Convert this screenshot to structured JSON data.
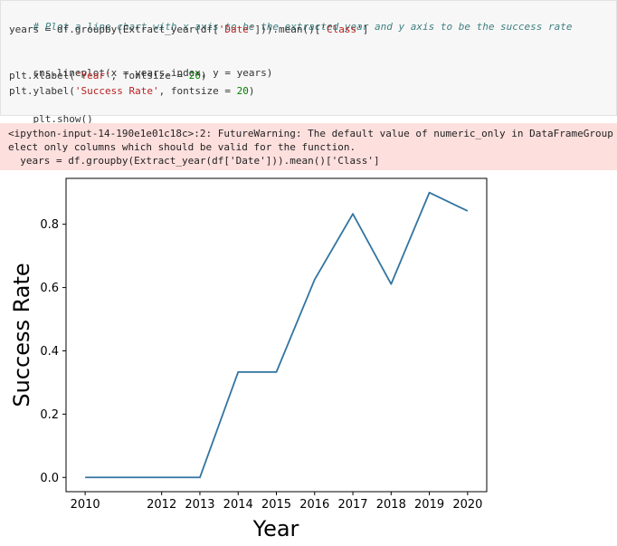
{
  "code_cell": {
    "comment": "# Plot a line chart with x axis to be the extracted year and y axis to be the success rate",
    "line2_a": "years = df.groupby(Extract_year(df[",
    "line2_str1": "'Date'",
    "line2_b": "])).mean()[",
    "line2_str2": "'Class'",
    "line2_c": "]",
    "line4": "sns.lineplot(x = years.index, y = years)",
    "line5_a": "plt.xlabel(",
    "line5_str": "'Year'",
    "line5_b": ", fontsize = ",
    "line5_num": "20",
    "line5_c": ")",
    "line6_a": "plt.ylabel(",
    "line6_str": "'Success Rate'",
    "line6_b": ", fontsize = ",
    "line6_num": "20",
    "line6_c": ")",
    "line7": "plt.show()"
  },
  "stderr": {
    "line1": "<ipython-input-14-190e1e01c18c>:2: FutureWarning: The default value of numeric_only in DataFrameGroup",
    "line2": "elect only columns which should be valid for the function.",
    "line3": "  years = df.groupby(Extract_year(df['Date'])).mean()['Class']"
  },
  "colors": {
    "line": "#3274a1",
    "stderr_bg": "#fddfdd",
    "code_bg": "#f7f7f7"
  },
  "chart_data": {
    "type": "line",
    "title": "",
    "xlabel": "Year",
    "ylabel": "Success Rate",
    "x": [
      "2010",
      "2011",
      "2012",
      "2013",
      "2014",
      "2015",
      "2016",
      "2017",
      "2018",
      "2019",
      "2020"
    ],
    "series": [
      {
        "values": [
          0.0,
          0.0,
          0.0,
          0.0,
          0.333,
          0.333,
          0.625,
          0.833,
          0.611,
          0.9,
          0.842
        ]
      }
    ],
    "xticks": [
      "2010",
      "2012",
      "2013",
      "2014",
      "2015",
      "2016",
      "2017",
      "2018",
      "2019",
      "2020"
    ],
    "yticks": [
      "0.0",
      "0.2",
      "0.4",
      "0.6",
      "0.8"
    ],
    "ylim": [
      -0.045,
      0.945
    ],
    "grid": false
  }
}
